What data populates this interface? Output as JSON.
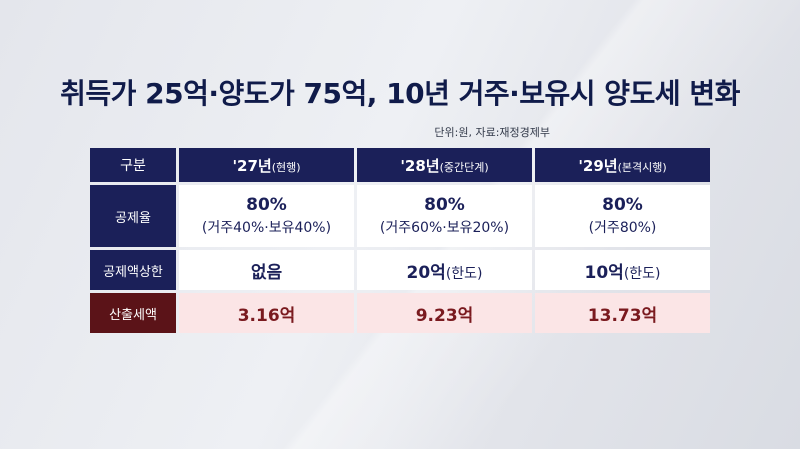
{
  "title": "취득가 25억·양도가 75억, 10년 거주·보유시 양도세 변화",
  "source": "단위:원, 자료:재정경제부",
  "table": {
    "corner": "구분",
    "columns": [
      {
        "year": "'27년",
        "stage": "(현행)"
      },
      {
        "year": "'28년",
        "stage": "(중간단계)"
      },
      {
        "year": "'29년",
        "stage": "(본격시행)"
      }
    ],
    "rows": {
      "deduction_rate": {
        "label": "공제율",
        "cells": [
          {
            "main": "80%",
            "sub": "(거주40%·보유40%)"
          },
          {
            "main": "80%",
            "sub": "(거주60%·보유20%)"
          },
          {
            "main": "80%",
            "sub": "(거주80%)"
          }
        ]
      },
      "deduction_cap": {
        "label": "공제액상한",
        "cells": [
          {
            "main": "없음",
            "unit": ""
          },
          {
            "main": "20억",
            "unit": "(한도)"
          },
          {
            "main": "10억",
            "unit": "(한도)"
          }
        ]
      },
      "computed_tax": {
        "label": "산출세액",
        "cells": [
          "3.16억",
          "9.23억",
          "13.73억"
        ]
      }
    }
  }
}
